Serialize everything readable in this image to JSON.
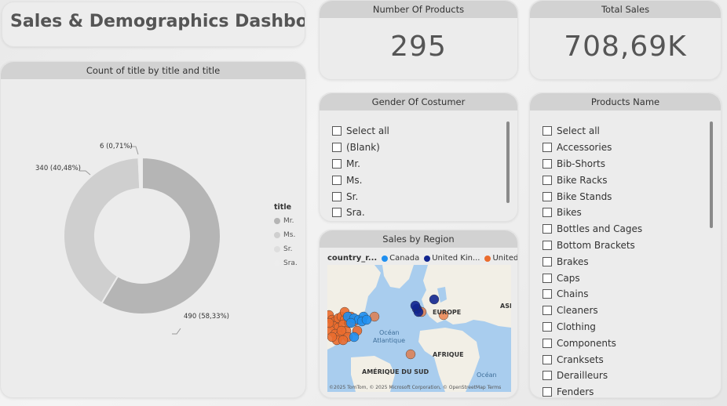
{
  "title": "Sales & Demographics Dashboard",
  "donut": {
    "header": "Count of title by title and title",
    "legend_title": "title",
    "legend": [
      {
        "label": "Mr.",
        "color": "#b5b5b5"
      },
      {
        "label": "Ms.",
        "color": "#cfcfcf"
      },
      {
        "label": "Sr.",
        "color": "#dedede"
      },
      {
        "label": "Sra.",
        "color": "#ededed"
      }
    ],
    "labels": {
      "mr": "490 (58,33%)",
      "ms": "340 (40,48%)",
      "sra": "6 (0,71%)"
    }
  },
  "kpi_products": {
    "header": "Number Of Products",
    "value": "295"
  },
  "kpi_sales": {
    "header": "Total Sales",
    "value": "708,69K"
  },
  "gender_slicer": {
    "header": "Gender Of Costumer",
    "items": [
      "Select all",
      "(Blank)",
      "Mr.",
      "Ms.",
      "Sr.",
      "Sra."
    ]
  },
  "products_slicer": {
    "header": "Products Name",
    "items": [
      "Select all",
      "Accessories",
      "Bib-Shorts",
      "Bike Racks",
      "Bike Stands",
      "Bikes",
      "Bottles and Cages",
      "Bottom Brackets",
      "Brakes",
      "Caps",
      "Chains",
      "Cleaners",
      "Clothing",
      "Components",
      "Cranksets",
      "Derailleurs",
      "Fenders"
    ]
  },
  "region_map": {
    "header": "Sales by Region",
    "legend_title": "country_r...",
    "series": [
      {
        "name": "Canada",
        "color": "#1f8ff0"
      },
      {
        "name": "United Kin...",
        "color": "#11258f"
      },
      {
        "name": "United States",
        "color": "#ea6c2e"
      }
    ],
    "labels": {
      "europe": "EUROPE",
      "asia": "ASI",
      "africa": "AFRIQUE",
      "south_america": "AMÉRIQUE DU SUD",
      "ocean_atl_1": "Océan",
      "ocean_atl_2": "Atlantique",
      "ocean_2": "Océan"
    },
    "credit": "©2025 TomTom, © 2025 Microsoft Corporation, © OpenStreetMap Terms"
  },
  "chart_data": {
    "type": "pie",
    "title": "Count of title by title and title",
    "categories": [
      "Mr.",
      "Ms.",
      "Sr.",
      "Sra."
    ],
    "values": [
      490,
      340,
      0,
      6
    ],
    "percent": [
      58.33,
      40.48,
      0,
      0.71
    ],
    "legend_placement": "right"
  }
}
